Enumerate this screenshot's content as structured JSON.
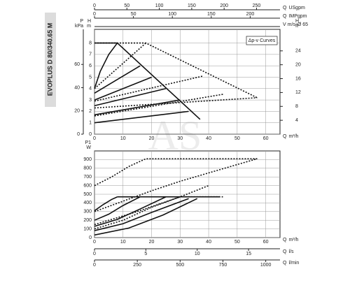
{
  "side_label": "EVOPLUS D 80/340.65 M",
  "watermark": "AS",
  "chart_data": [
    {
      "type": "line",
      "color": "#111",
      "grid": true,
      "legend_box": "Δp-v Curves",
      "x_title": {
        "label": "Q",
        "unit": "m³/h"
      },
      "xlim": [
        0,
        65
      ],
      "xticks": [
        0,
        10,
        20,
        30,
        40,
        50,
        60
      ],
      "y_title": {
        "label": "H",
        "unit": "m"
      },
      "ylim": [
        0,
        9.2
      ],
      "yticks": [
        0,
        1,
        2,
        3,
        4,
        5,
        6,
        7,
        8
      ],
      "y_left2": {
        "label": "P",
        "unit": "kPa",
        "lim": [
          0,
          90.2
        ],
        "ticks": [
          0,
          20,
          40,
          60
        ]
      },
      "y_right": {
        "label": "H",
        "unit": "ft",
        "lim": [
          0,
          30.2
        ],
        "ticks": [
          4,
          8,
          12,
          16,
          20,
          24
        ]
      },
      "top_axes": [
        {
          "label": "Q",
          "unit": "USgpm",
          "lim": [
            0,
            286.2
          ],
          "ticks": [
            0,
            50,
            100,
            150,
            200,
            250
          ]
        },
        {
          "label": "Q",
          "unit": "IMPgpm",
          "lim": [
            0,
            238.3
          ],
          "ticks": [
            0,
            50,
            100,
            150,
            200
          ]
        },
        {
          "label": "V m/s",
          "unit": "Ø 65"
        }
      ],
      "series": [
        {
          "x": [
            0,
            33
          ],
          "values": [
            1,
            2
          ],
          "dashed": false
        },
        {
          "x": [
            0,
            30
          ],
          "values": [
            1.7,
            3
          ],
          "dashed": false
        },
        {
          "x": [
            0,
            25
          ],
          "values": [
            2.5,
            4
          ],
          "dashed": false
        },
        {
          "x": [
            0,
            20
          ],
          "values": [
            3,
            5
          ],
          "dashed": false
        },
        {
          "x": [
            0,
            16
          ],
          "values": [
            3.6,
            6
          ],
          "dashed": false
        },
        {
          "x": [
            0,
            2,
            5,
            8
          ],
          "values": [
            4,
            5.5,
            7,
            8
          ],
          "dashed": false
        },
        {
          "x": [
            0,
            8,
            37
          ],
          "values": [
            8,
            8,
            1.3
          ],
          "dashed": false
        },
        {
          "x": [
            0,
            18,
            57
          ],
          "values": [
            8,
            8,
            3.2
          ],
          "dashed": true
        },
        {
          "x": [
            0,
            18
          ],
          "values": [
            4,
            8
          ],
          "dashed": true
        },
        {
          "x": [
            0,
            38
          ],
          "values": [
            2.9,
            5.1
          ],
          "dashed": true
        },
        {
          "x": [
            0,
            45
          ],
          "values": [
            1.6,
            3.5
          ],
          "dashed": true
        },
        {
          "x": [
            0,
            57
          ],
          "values": [
            2.3,
            3.2
          ],
          "dashed": true
        }
      ]
    },
    {
      "type": "line",
      "color": "#111",
      "grid": true,
      "x_title": {
        "label": "Q",
        "unit": "m³/h"
      },
      "xlim": [
        0,
        65
      ],
      "xticks": [
        0,
        10,
        20,
        30,
        40,
        50,
        60
      ],
      "y_title": {
        "label": "P1",
        "unit": "W"
      },
      "ylim": [
        0,
        1000
      ],
      "yticks": [
        0,
        100,
        200,
        300,
        400,
        500,
        600,
        700,
        800,
        900
      ],
      "bottom_axes": [
        {
          "label": "Q",
          "unit": "l/s",
          "lim": [
            0,
            18.06
          ],
          "ticks": [
            0,
            5,
            10,
            15
          ]
        },
        {
          "label": "Q",
          "unit": "l/min",
          "lim": [
            0,
            1083.3
          ],
          "ticks": [
            0,
            250,
            500,
            750,
            1000
          ]
        }
      ],
      "series": [
        {
          "x": [
            0,
            3,
            6,
            8
          ],
          "values": [
            310,
            380,
            440,
            470
          ],
          "dashed": false
        },
        {
          "x": [
            0,
            5,
            10,
            16
          ],
          "values": [
            200,
            270,
            370,
            470
          ],
          "dashed": false
        },
        {
          "x": [
            0,
            8,
            16,
            25
          ],
          "values": [
            130,
            210,
            330,
            470
          ],
          "dashed": false
        },
        {
          "x": [
            0,
            10,
            20,
            33
          ],
          "values": [
            80,
            160,
            290,
            450
          ],
          "dashed": false
        },
        {
          "x": [
            0,
            12,
            24,
            36
          ],
          "values": [
            30,
            110,
            260,
            450
          ],
          "dashed": false
        },
        {
          "x": [
            8,
            44
          ],
          "values": [
            470,
            470
          ],
          "dashed": false
        },
        {
          "x": [
            0,
            6,
            12,
            18,
            57
          ],
          "values": [
            600,
            700,
            820,
            910,
            910
          ],
          "dashed": true
        },
        {
          "x": [
            0,
            10,
            20,
            30,
            57
          ],
          "values": [
            300,
            420,
            540,
            650,
            910
          ],
          "dashed": true
        },
        {
          "x": [
            0,
            10,
            20,
            30,
            40
          ],
          "values": [
            100,
            200,
            350,
            470,
            600
          ],
          "dashed": true
        },
        {
          "x": [
            0,
            15,
            30,
            45
          ],
          "values": [
            150,
            300,
            470,
            470
          ],
          "dashed": true
        }
      ]
    }
  ]
}
